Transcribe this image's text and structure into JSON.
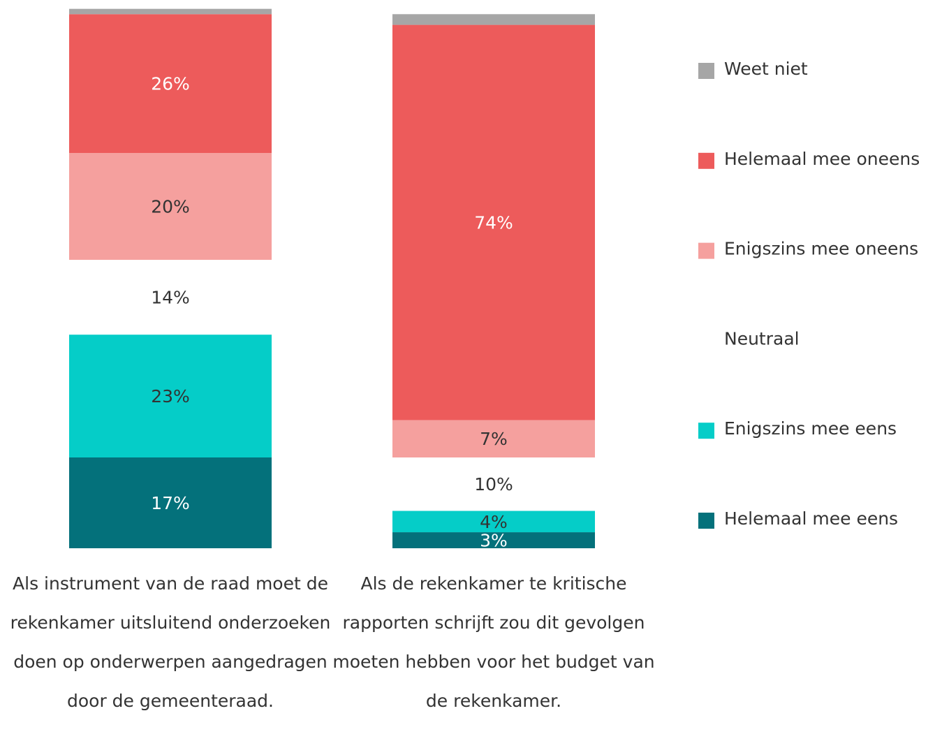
{
  "chart_data": {
    "type": "stacked_bar",
    "categories": [
      "Als instrument van de raad moet de rekenkamer uitsluitend onderzoeken doen op onderwerpen aangedragen door de gemeenteraad.",
      "Als de rekenkamer te kritische rapporten schrijft zou dit gevolgen moeten hebben voor het budget van de rekenkamer."
    ],
    "series": [
      {
        "name": "Helemaal mee eens",
        "color": "#04717b",
        "label_color": "#ffffff",
        "values": [
          17,
          3
        ],
        "value_labels": [
          "17%",
          "3%"
        ]
      },
      {
        "name": "Enigszins mee eens",
        "color": "#05cdc8",
        "label_color": "#333333",
        "values": [
          23,
          4
        ],
        "value_labels": [
          "23%",
          "4%"
        ]
      },
      {
        "name": "Neutraal",
        "color": "#ffffff",
        "label_color": "#333333",
        "values": [
          14,
          10
        ],
        "value_labels": [
          "14%",
          "10%"
        ]
      },
      {
        "name": "Enigszins mee oneens",
        "color": "#f5a09e",
        "label_color": "#333333",
        "values": [
          20,
          7
        ],
        "value_labels": [
          "20%",
          "7%"
        ]
      },
      {
        "name": "Helemaal mee oneens",
        "color": "#ed5b5b",
        "label_color": "#ffffff",
        "values": [
          26,
          74
        ],
        "value_labels": [
          "26%",
          "74%"
        ]
      },
      {
        "name": "Weet niet",
        "color": "#a6a6a6",
        "label_color": "#333333",
        "values": [
          1,
          2
        ],
        "value_labels": [
          null,
          null
        ]
      }
    ],
    "ylim": [
      0,
      102
    ],
    "legend": "right"
  }
}
